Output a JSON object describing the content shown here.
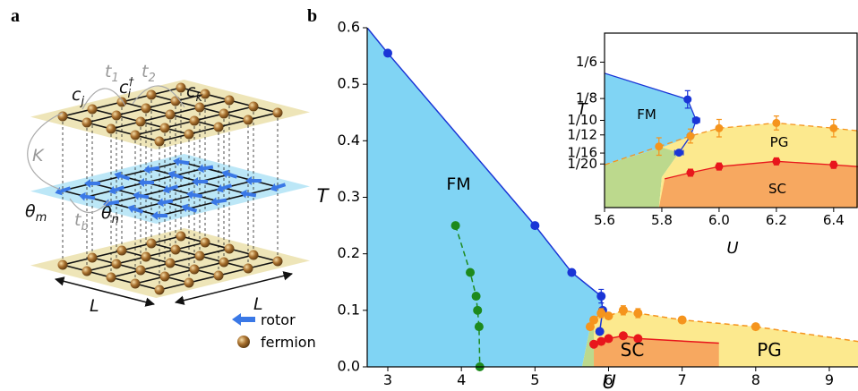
{
  "panel_a": {
    "panel_label": "a",
    "labels": [
      {
        "base": "c",
        "sub": "j"
      },
      {
        "base": "t",
        "sub": "1"
      },
      {
        "base": "c",
        "sup": "†",
        "sub": "i"
      },
      {
        "base": "t",
        "sub": "2"
      },
      {
        "base": "c",
        "sub": "k"
      },
      {
        "base": "K"
      },
      {
        "base": "θ",
        "sub": "m"
      },
      {
        "base": "t",
        "sub": "b"
      },
      {
        "base": "θ",
        "sub": "n"
      },
      {
        "base": "L"
      },
      {
        "base": "L"
      }
    ],
    "legend": [
      "rotor",
      "fermion"
    ]
  },
  "chart_data": [
    {
      "type": "line",
      "panel_label": "b",
      "xlabel": "U",
      "ylabel": "T",
      "xlim": [
        2.72,
        9.39
      ],
      "ylim": [
        0,
        0.6
      ],
      "xticks": [
        3,
        4,
        5,
        6,
        7,
        8,
        9
      ],
      "yticks": [
        {
          "value": 0,
          "label": "0.0"
        },
        0.1,
        0.2,
        0.3,
        0.4,
        0.5,
        0.6
      ],
      "annotations": [
        "FM",
        "SC",
        "PG"
      ],
      "series": [
        {
          "style": "area",
          "color": "#80d4f4",
          "x": [
            2.72,
            3,
            5,
            5.5,
            5.9,
            5.92,
            5.88,
            5.75,
            5.64,
            2.72
          ],
          "values": [
            0.6,
            0.555,
            0.25,
            0.167,
            0.125,
            0.1,
            0.0625,
            0.07,
            0,
            0
          ]
        },
        {
          "style": "area",
          "color": "#bcd98d",
          "x": [
            5.64,
            5.75,
            5.88,
            5.8,
            5.8
          ],
          "values": [
            0,
            0.07,
            0.0625,
            0.03,
            0
          ]
        },
        {
          "style": "area",
          "color": "#fce98e",
          "x": [
            5.8,
            5.9,
            6,
            6.2,
            6.4,
            7,
            8,
            9.39,
            9.39,
            5.8
          ],
          "values": [
            0.083,
            0.095,
            0.09,
            0.1,
            0.095,
            0.083,
            0.071,
            0.045,
            0,
            0
          ]
        },
        {
          "style": "area",
          "color": "#f7a860",
          "x": [
            5.8,
            5.9,
            6,
            6.2,
            6.4,
            7.5,
            7.5,
            5.8
          ],
          "values": [
            0.04,
            0.045,
            0.05,
            0.055,
            0.05,
            0.042,
            0,
            0
          ]
        },
        {
          "style": "line",
          "color": "#1a35d6",
          "dash": false,
          "x": [
            2.72,
            3,
            5,
            5.5,
            5.9,
            5.92,
            5.88
          ],
          "values": [
            0.6,
            0.555,
            0.25,
            0.167,
            0.125,
            0.1,
            0.0625
          ]
        },
        {
          "style": "points",
          "color": "#1a35d6",
          "x": [
            3,
            5,
            5.5,
            5.9,
            5.92,
            5.88
          ],
          "values": [
            0.555,
            0.25,
            0.167,
            0.125,
            0.1,
            0.0625
          ],
          "yerr": [
            null,
            null,
            null,
            0.012,
            null,
            null
          ]
        },
        {
          "style": "line-points",
          "color": "#1d8a1d",
          "dash": true,
          "x": [
            3.92,
            4.12,
            4.2,
            4.22,
            4.24,
            4.25
          ],
          "values": [
            0.25,
            0.167,
            0.125,
            0.1,
            0.071,
            0
          ]
        },
        {
          "style": "line-points",
          "color": "#f5941d",
          "dash": true,
          "x": [
            5.75,
            5.8,
            5.9,
            6,
            6.2,
            6.4,
            7,
            8
          ],
          "values": [
            0.071,
            0.083,
            0.095,
            0.09,
            0.1,
            0.095,
            0.083,
            0.071
          ],
          "yerr": [
            null,
            null,
            0.008,
            null,
            0.008,
            0.008,
            0.005,
            0.005
          ]
        },
        {
          "style": "line",
          "color": "#f5941d",
          "dash": true,
          "x": [
            8,
            9.39
          ],
          "values": [
            0.071,
            0.045
          ]
        },
        {
          "style": "line-points",
          "color": "#e8161c",
          "dash": false,
          "x": [
            5.8,
            5.9,
            6,
            6.2,
            6.4
          ],
          "values": [
            0.04,
            0.045,
            0.05,
            0.055,
            0.05
          ]
        },
        {
          "style": "line",
          "color": "#e8161c",
          "dash": false,
          "x": [
            6.4,
            7.5
          ],
          "values": [
            0.05,
            0.042
          ]
        }
      ]
    },
    {
      "type": "line",
      "xlabel": "U",
      "ylabel": "T",
      "xlim": [
        5.6,
        6.485
      ],
      "ylim": [
        0,
        0.2
      ],
      "xticks": [
        5.6,
        5.8,
        {
          "value": 6,
          "label": "6.0"
        },
        6.2,
        6.4
      ],
      "yticks": [
        {
          "value": 0.1667,
          "label": "1/6"
        },
        {
          "value": 0.125,
          "label": "1/8"
        },
        {
          "value": 0.1,
          "label": "1/10"
        },
        {
          "value": 0.0833,
          "label": "1/12"
        },
        {
          "value": 0.0625,
          "label": "1/16"
        },
        {
          "value": 0.05,
          "label": "1/20"
        }
      ],
      "annotations": [
        "FM",
        "PG",
        "SC"
      ],
      "series": [
        {
          "style": "area",
          "color": "#80d4f4",
          "x": [
            5.6,
            5.89,
            5.92,
            5.9,
            5.86,
            5.8,
            5.6
          ],
          "values": [
            0.154,
            0.124,
            0.1,
            0.082,
            0.063,
            0.069,
            0.049
          ]
        },
        {
          "style": "area",
          "color": "#bcd98d",
          "x": [
            5.6,
            5.8,
            5.86,
            5.8,
            5.79,
            5.6
          ],
          "values": [
            0.049,
            0.069,
            0.063,
            0.035,
            0,
            0
          ]
        },
        {
          "style": "area",
          "color": "#fce98e",
          "x": [
            5.8,
            5.9,
            6,
            6.2,
            6.4,
            6.485,
            6.485,
            5.79,
            5.8,
            5.86
          ],
          "values": [
            0.069,
            0.082,
            0.091,
            0.097,
            0.091,
            0.088,
            0,
            0,
            0.035,
            0.063
          ]
        },
        {
          "style": "area",
          "color": "#f7a860",
          "x": [
            5.79,
            5.81,
            5.9,
            6,
            6.2,
            6.4,
            6.485,
            6.485
          ],
          "values": [
            0,
            0.033,
            0.04,
            0.047,
            0.053,
            0.049,
            0.047,
            0
          ]
        },
        {
          "style": "line",
          "color": "#1a35d6",
          "dash": false,
          "x": [
            5.6,
            5.89,
            5.92,
            5.9,
            5.86
          ],
          "values": [
            0.154,
            0.124,
            0.1,
            0.082,
            0.063
          ]
        },
        {
          "style": "points",
          "color": "#1a35d6",
          "x": [
            5.89,
            5.92,
            5.9,
            5.86
          ],
          "values": [
            0.124,
            0.1,
            0.082,
            0.063
          ],
          "yerr": [
            0.01,
            null,
            null,
            null
          ],
          "xerr": [
            null,
            0.012,
            null,
            0.015
          ]
        },
        {
          "style": "line",
          "color": "#f5941d",
          "dash": true,
          "x": [
            5.6,
            5.79
          ],
          "values": [
            0.049,
            0.07
          ]
        },
        {
          "style": "line-points",
          "color": "#f5941d",
          "dash": true,
          "x": [
            5.79,
            5.9,
            6,
            6.2,
            6.4
          ],
          "values": [
            0.07,
            0.082,
            0.091,
            0.097,
            0.091
          ],
          "yerr": [
            0.01,
            0.008,
            0.01,
            0.008,
            0.01
          ]
        },
        {
          "style": "line",
          "color": "#f5941d",
          "dash": true,
          "x": [
            6.4,
            6.485
          ],
          "values": [
            0.091,
            0.088
          ]
        },
        {
          "style": "line",
          "color": "#e8161c",
          "dash": false,
          "x": [
            5.81,
            5.9
          ],
          "values": [
            0.033,
            0.04
          ]
        },
        {
          "style": "line-points",
          "color": "#e8161c",
          "dash": false,
          "x": [
            5.9,
            6,
            6.2,
            6.4
          ],
          "values": [
            0.04,
            0.047,
            0.053,
            0.049
          ],
          "yerr": [
            0.004,
            0.004,
            0.004,
            0.004
          ]
        },
        {
          "style": "line",
          "color": "#e8161c",
          "dash": false,
          "x": [
            6.4,
            6.485
          ],
          "values": [
            0.049,
            0.047
          ]
        }
      ]
    }
  ]
}
